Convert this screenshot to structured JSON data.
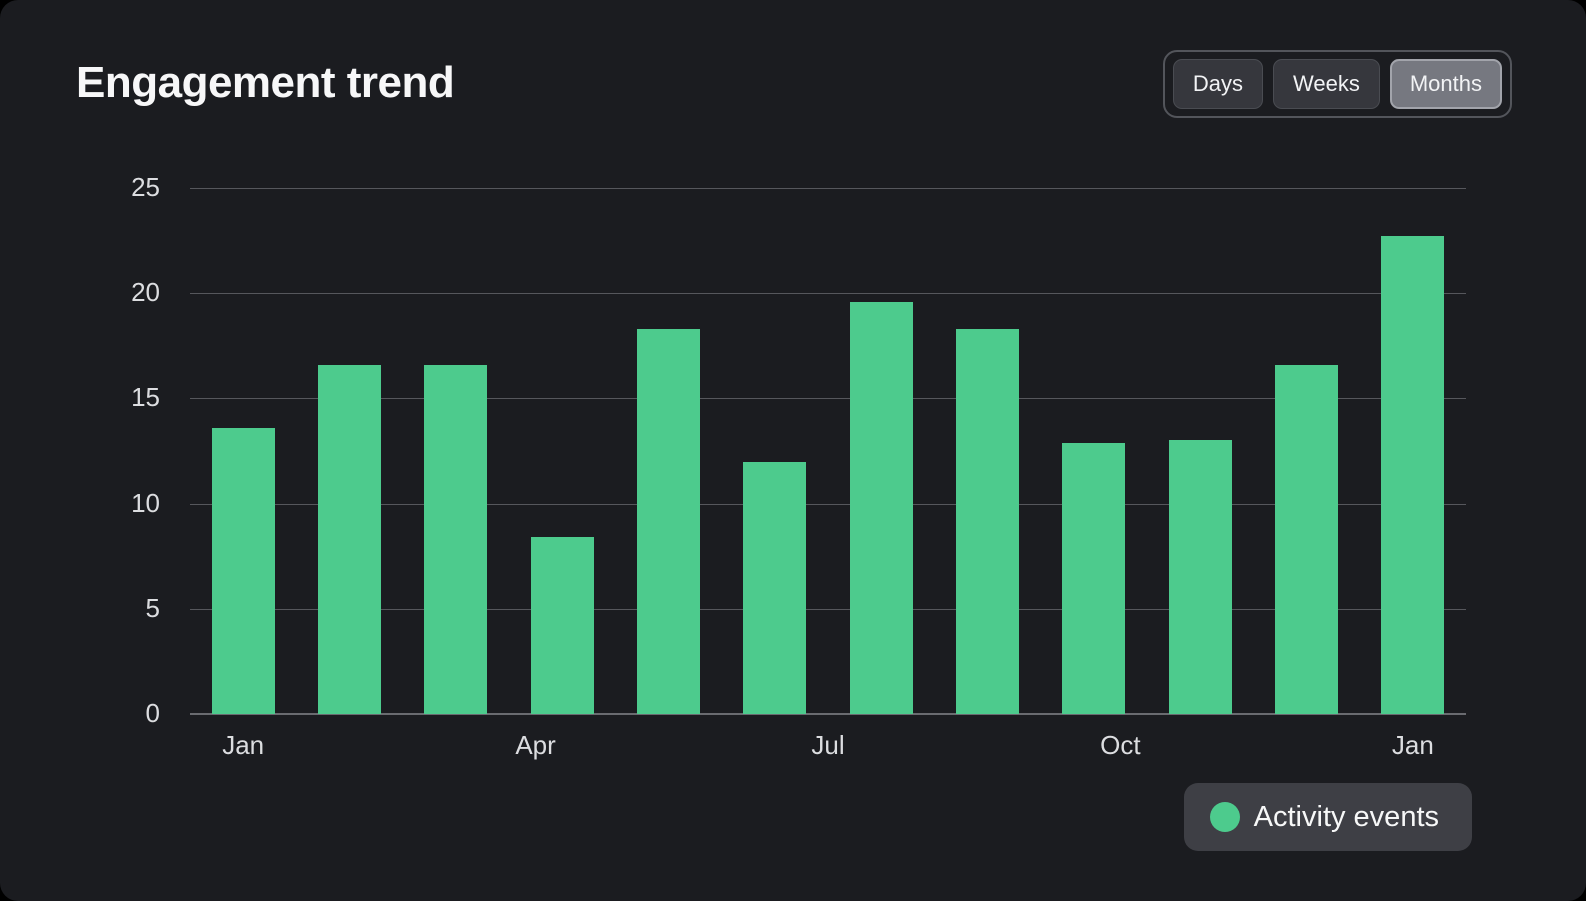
{
  "page": {
    "title": "Engagement trend"
  },
  "toolbar": {
    "options": [
      {
        "label": "Days",
        "active": false
      },
      {
        "label": "Weeks",
        "active": false
      },
      {
        "label": "Months",
        "active": true
      }
    ]
  },
  "legend": {
    "label": "Activity events"
  },
  "colors": {
    "background": "#1b1c20",
    "bar_green": "#4dcb8d",
    "gridline": "#56575c",
    "axis_line": "#6a6b70",
    "tick_text": "#dcdde0",
    "title_text": "#f7f7f8",
    "button_active_bg": "#767880",
    "button_inactive_bg": "#36373d",
    "legend_bg": "#3e3f45"
  },
  "chart_data": {
    "type": "bar",
    "title": "Engagement trend",
    "series": [
      {
        "name": "Activity events",
        "values": [
          13.6,
          16.6,
          16.6,
          8.4,
          18.3,
          12,
          19.6,
          18.3,
          12.9,
          13,
          16.6,
          22.7
        ]
      }
    ],
    "x_tick_labels": [
      "Jan",
      "Apr",
      "Jul",
      "Oct",
      "Jan"
    ],
    "y_ticks": [
      0,
      5,
      10,
      15,
      20,
      25
    ],
    "ylim": [
      0,
      25
    ],
    "xlabel": "",
    "ylabel": "",
    "grid": "horizontal",
    "bar_color": "#4dcb8d",
    "legend_position": "bottom-right"
  }
}
